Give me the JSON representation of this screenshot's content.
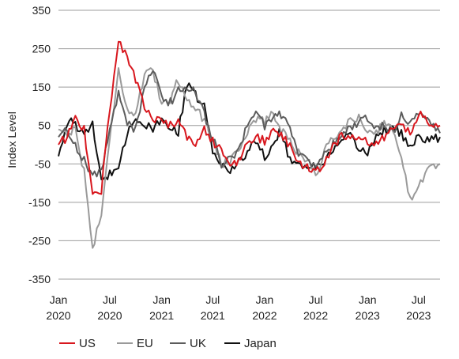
{
  "chart_data": {
    "type": "line",
    "title": "",
    "xlabel": "",
    "ylabel": "Index Level",
    "ylim": [
      -350,
      350
    ],
    "xlim": [
      "2020-01-01",
      "2023-09-15"
    ],
    "y_ticks": [
      350,
      250,
      150,
      50,
      -50,
      -150,
      -250,
      -350
    ],
    "y_tick_labels": [
      "350",
      "250",
      "150",
      "50",
      "-50",
      "-150",
      "-250",
      "-350"
    ],
    "x_ticks": [
      {
        "date": "2020-01-01",
        "line1": "Jan",
        "line2": "2020"
      },
      {
        "date": "2020-07-01",
        "line1": "Jul",
        "line2": "2020"
      },
      {
        "date": "2021-01-01",
        "line1": "Jan",
        "line2": "2021"
      },
      {
        "date": "2021-07-01",
        "line1": "Jul",
        "line2": "2021"
      },
      {
        "date": "2022-01-01",
        "line1": "Jan",
        "line2": "2022"
      },
      {
        "date": "2022-07-01",
        "line1": "Jul",
        "line2": "2022"
      },
      {
        "date": "2023-01-01",
        "line1": "Jan",
        "line2": "2023"
      },
      {
        "date": "2023-07-01",
        "line1": "Jul",
        "line2": "2023"
      }
    ],
    "grid": "horizontal",
    "legend_position": "bottom-left",
    "series": [
      {
        "name": "Japan",
        "color": "#111111",
        "points": [
          [
            "2020-01-01",
            -30
          ],
          [
            "2020-02-01",
            60
          ],
          [
            "2020-03-01",
            55
          ],
          [
            "2020-04-01",
            20
          ],
          [
            "2020-05-01",
            60
          ],
          [
            "2020-06-01",
            -100
          ],
          [
            "2020-07-01",
            -75
          ],
          [
            "2020-08-01",
            -50
          ],
          [
            "2020-09-01",
            30
          ],
          [
            "2020-10-01",
            70
          ],
          [
            "2020-11-01",
            50
          ],
          [
            "2020-12-01",
            40
          ],
          [
            "2021-01-01",
            60
          ],
          [
            "2021-02-01",
            50
          ],
          [
            "2021-03-01",
            30
          ],
          [
            "2021-04-01",
            155
          ],
          [
            "2021-05-01",
            130
          ],
          [
            "2021-06-01",
            100
          ],
          [
            "2021-07-01",
            -20
          ],
          [
            "2021-08-01",
            -50
          ],
          [
            "2021-09-01",
            -70
          ],
          [
            "2021-10-01",
            -40
          ],
          [
            "2021-11-01",
            -20
          ],
          [
            "2021-12-01",
            10
          ],
          [
            "2022-01-01",
            -30
          ],
          [
            "2022-02-01",
            0
          ],
          [
            "2022-03-01",
            40
          ],
          [
            "2022-04-01",
            -40
          ],
          [
            "2022-05-01",
            -50
          ],
          [
            "2022-06-01",
            -55
          ],
          [
            "2022-07-01",
            -60
          ],
          [
            "2022-08-01",
            -40
          ],
          [
            "2022-09-01",
            -20
          ],
          [
            "2022-10-01",
            10
          ],
          [
            "2022-11-01",
            20
          ],
          [
            "2022-12-01",
            -10
          ],
          [
            "2023-01-01",
            -20
          ],
          [
            "2023-02-01",
            20
          ],
          [
            "2023-03-01",
            40
          ],
          [
            "2023-04-01",
            45
          ],
          [
            "2023-05-01",
            30
          ],
          [
            "2023-06-01",
            -10
          ],
          [
            "2023-07-01",
            20
          ],
          [
            "2023-08-01",
            10
          ],
          [
            "2023-09-15",
            20
          ]
        ]
      },
      {
        "name": "EU",
        "color": "#9a9a9a",
        "points": [
          [
            "2020-01-01",
            40
          ],
          [
            "2020-02-01",
            30
          ],
          [
            "2020-03-01",
            40
          ],
          [
            "2020-04-01",
            -70
          ],
          [
            "2020-05-01",
            -270
          ],
          [
            "2020-06-01",
            -180
          ],
          [
            "2020-07-01",
            10
          ],
          [
            "2020-08-01",
            200
          ],
          [
            "2020-09-01",
            90
          ],
          [
            "2020-10-01",
            80
          ],
          [
            "2020-11-01",
            180
          ],
          [
            "2020-12-01",
            190
          ],
          [
            "2021-01-01",
            110
          ],
          [
            "2021-02-01",
            120
          ],
          [
            "2021-03-01",
            170
          ],
          [
            "2021-04-01",
            120
          ],
          [
            "2021-05-01",
            100
          ],
          [
            "2021-06-01",
            60
          ],
          [
            "2021-07-01",
            20
          ],
          [
            "2021-08-01",
            -50
          ],
          [
            "2021-09-01",
            -40
          ],
          [
            "2021-10-01",
            -10
          ],
          [
            "2021-11-01",
            30
          ],
          [
            "2021-12-01",
            70
          ],
          [
            "2022-01-01",
            60
          ],
          [
            "2022-02-01",
            80
          ],
          [
            "2022-03-01",
            40
          ],
          [
            "2022-04-01",
            10
          ],
          [
            "2022-05-01",
            -20
          ],
          [
            "2022-06-01",
            -40
          ],
          [
            "2022-07-01",
            -80
          ],
          [
            "2022-08-01",
            -20
          ],
          [
            "2022-09-01",
            20
          ],
          [
            "2022-10-01",
            40
          ],
          [
            "2022-11-01",
            60
          ],
          [
            "2022-12-01",
            70
          ],
          [
            "2023-01-01",
            40
          ],
          [
            "2023-02-01",
            30
          ],
          [
            "2023-03-01",
            60
          ],
          [
            "2023-04-01",
            40
          ],
          [
            "2023-05-01",
            -40
          ],
          [
            "2023-06-01",
            -140
          ],
          [
            "2023-07-01",
            -110
          ],
          [
            "2023-08-01",
            -60
          ],
          [
            "2023-09-15",
            -50
          ]
        ]
      },
      {
        "name": "UK",
        "color": "#5c5c5c",
        "points": [
          [
            "2020-01-01",
            20
          ],
          [
            "2020-02-01",
            40
          ],
          [
            "2020-03-01",
            0
          ],
          [
            "2020-04-01",
            -40
          ],
          [
            "2020-05-01",
            -80
          ],
          [
            "2020-06-01",
            -70
          ],
          [
            "2020-07-01",
            40
          ],
          [
            "2020-08-01",
            130
          ],
          [
            "2020-09-01",
            60
          ],
          [
            "2020-10-01",
            40
          ],
          [
            "2020-11-01",
            140
          ],
          [
            "2020-12-01",
            200
          ],
          [
            "2021-01-01",
            120
          ],
          [
            "2021-02-01",
            110
          ],
          [
            "2021-03-01",
            140
          ],
          [
            "2021-04-01",
            150
          ],
          [
            "2021-05-01",
            140
          ],
          [
            "2021-06-01",
            80
          ],
          [
            "2021-07-01",
            20
          ],
          [
            "2021-08-01",
            -50
          ],
          [
            "2021-09-01",
            -40
          ],
          [
            "2021-10-01",
            -20
          ],
          [
            "2021-11-01",
            60
          ],
          [
            "2021-12-01",
            80
          ],
          [
            "2022-01-01",
            50
          ],
          [
            "2022-02-01",
            70
          ],
          [
            "2022-03-01",
            80
          ],
          [
            "2022-04-01",
            40
          ],
          [
            "2022-05-01",
            -20
          ],
          [
            "2022-06-01",
            -40
          ],
          [
            "2022-07-01",
            -60
          ],
          [
            "2022-08-01",
            -20
          ],
          [
            "2022-09-01",
            0
          ],
          [
            "2022-10-01",
            30
          ],
          [
            "2022-11-01",
            40
          ],
          [
            "2022-12-01",
            60
          ],
          [
            "2023-01-01",
            70
          ],
          [
            "2023-02-01",
            40
          ],
          [
            "2023-03-01",
            50
          ],
          [
            "2023-04-01",
            30
          ],
          [
            "2023-05-01",
            80
          ],
          [
            "2023-06-01",
            60
          ],
          [
            "2023-07-01",
            80
          ],
          [
            "2023-08-01",
            60
          ],
          [
            "2023-09-15",
            30
          ]
        ]
      },
      {
        "name": "US",
        "color": "#d8171e",
        "points": [
          [
            "2020-01-01",
            0
          ],
          [
            "2020-02-01",
            20
          ],
          [
            "2020-03-01",
            70
          ],
          [
            "2020-04-01",
            40
          ],
          [
            "2020-05-01",
            -130
          ],
          [
            "2020-06-01",
            -120
          ],
          [
            "2020-07-01",
            90
          ],
          [
            "2020-08-01",
            270
          ],
          [
            "2020-09-01",
            230
          ],
          [
            "2020-10-01",
            170
          ],
          [
            "2020-11-01",
            100
          ],
          [
            "2020-12-01",
            60
          ],
          [
            "2021-01-01",
            70
          ],
          [
            "2021-02-01",
            50
          ],
          [
            "2021-03-01",
            60
          ],
          [
            "2021-04-01",
            20
          ],
          [
            "2021-05-01",
            0
          ],
          [
            "2021-06-01",
            40
          ],
          [
            "2021-07-01",
            10
          ],
          [
            "2021-08-01",
            -20
          ],
          [
            "2021-09-01",
            -60
          ],
          [
            "2021-10-01",
            -40
          ],
          [
            "2021-11-01",
            0
          ],
          [
            "2021-12-01",
            20
          ],
          [
            "2022-01-01",
            10
          ],
          [
            "2022-02-01",
            40
          ],
          [
            "2022-03-01",
            20
          ],
          [
            "2022-04-01",
            0
          ],
          [
            "2022-05-01",
            -40
          ],
          [
            "2022-06-01",
            -60
          ],
          [
            "2022-07-01",
            -70
          ],
          [
            "2022-08-01",
            -50
          ],
          [
            "2022-09-01",
            0
          ],
          [
            "2022-10-01",
            20
          ],
          [
            "2022-11-01",
            10
          ],
          [
            "2022-12-01",
            30
          ],
          [
            "2023-01-01",
            10
          ],
          [
            "2023-02-01",
            0
          ],
          [
            "2023-03-01",
            20
          ],
          [
            "2023-04-01",
            40
          ],
          [
            "2023-05-01",
            50
          ],
          [
            "2023-06-01",
            30
          ],
          [
            "2023-07-01",
            80
          ],
          [
            "2023-08-01",
            60
          ],
          [
            "2023-09-15",
            50
          ]
        ]
      }
    ],
    "legend": [
      "US",
      "EU",
      "UK",
      "Japan"
    ]
  }
}
